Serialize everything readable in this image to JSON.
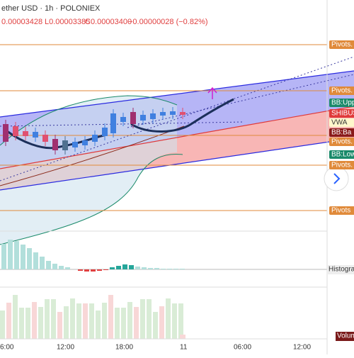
{
  "header": {
    "symbol": "ether USD · 1h · POLONIEX",
    "open": "0.00003428",
    "low": "L0.00003385",
    "close": "C0.00003400",
    "change": "−0.00000028 (−0.82%)"
  },
  "price_labels": [
    "Pivots.",
    "Pivots.",
    "BB:Upp",
    "SHIBUSD",
    "VWA",
    "BB:Ba",
    "Pivots.",
    "BB:Low",
    "Pivots.",
    "Pivots"
  ],
  "pane_labels": {
    "histogram": "Histogra",
    "volume": "Volum"
  },
  "time_axis": [
    "6:00",
    "12:00",
    "18:00",
    "11",
    "06:00",
    "12:00"
  ]
}
